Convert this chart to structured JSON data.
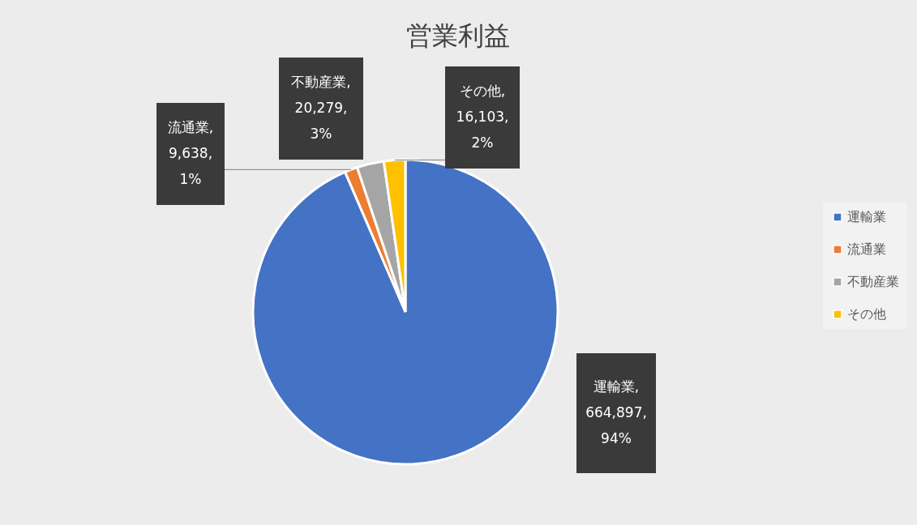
{
  "chart_data": {
    "type": "pie",
    "title": "営業利益",
    "categories": [
      "運輸業",
      "流通業",
      "不動産業",
      "その他"
    ],
    "values": [
      664897,
      9638,
      20279,
      16103
    ],
    "colors": [
      "#4472c4",
      "#ed7d31",
      "#a5a5a5",
      "#ffc000"
    ],
    "value_labels": [
      "運輸業,\n664,897,\n94%",
      "流通業,\n9,638,\n1%",
      "不動産業,\n20,279,\n3%",
      "その他,\n16,103,\n2%"
    ],
    "legend": "right"
  }
}
